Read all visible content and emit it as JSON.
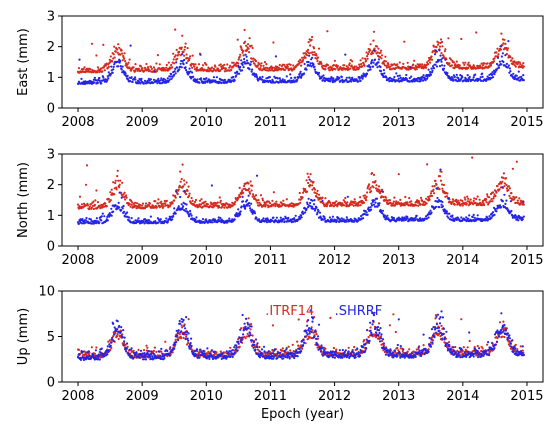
{
  "chart_data": [
    {
      "type": "scatter",
      "ylabel": "East (mm)",
      "xlabel": "",
      "xlim": [
        2007.75,
        2015.25
      ],
      "ylim": [
        0,
        3
      ],
      "xticks": [
        2008,
        2009,
        2010,
        2011,
        2012,
        2013,
        2014,
        2015
      ],
      "yticks": [
        0,
        1,
        2,
        3
      ],
      "grid": false,
      "series": [
        {
          "name": "ITRF14",
          "color": "#d62a1e",
          "model": {
            "base": 1.15,
            "amp": 0.55,
            "trend": 0.02,
            "noise": 0.18,
            "peak_phase": 0.62,
            "outlier_max": 2.6
          }
        },
        {
          "name": "SHRRF",
          "color": "#2424e8",
          "model": {
            "base": 0.78,
            "amp": 0.5,
            "trend": 0.015,
            "noise": 0.14,
            "peak_phase": 0.62,
            "outlier_max": 2.6
          }
        }
      ]
    },
    {
      "type": "scatter",
      "ylabel": "North (mm)",
      "xlabel": "",
      "xlim": [
        2007.75,
        2015.25
      ],
      "ylim": [
        0,
        3
      ],
      "xticks": [
        2008,
        2009,
        2010,
        2011,
        2012,
        2013,
        2014,
        2015
      ],
      "yticks": [
        0,
        1,
        2,
        3
      ],
      "grid": false,
      "series": [
        {
          "name": "ITRF14",
          "color": "#d62a1e",
          "model": {
            "base": 1.2,
            "amp": 0.55,
            "trend": 0.02,
            "noise": 0.18,
            "peak_phase": 0.62,
            "outlier_max": 2.9
          }
        },
        {
          "name": "SHRRF",
          "color": "#2424e8",
          "model": {
            "base": 0.72,
            "amp": 0.45,
            "trend": 0.015,
            "noise": 0.13,
            "peak_phase": 0.62,
            "outlier_max": 2.5
          }
        }
      ]
    },
    {
      "type": "scatter",
      "ylabel": "Up (mm)",
      "xlabel": "Epoch (year)",
      "xlim": [
        2007.75,
        2015.25
      ],
      "ylim": [
        0,
        10
      ],
      "xticks": [
        2008,
        2009,
        2010,
        2011,
        2012,
        2013,
        2014,
        2015
      ],
      "yticks": [
        0,
        5,
        10
      ],
      "grid": false,
      "legend": {
        "placement": "top-center",
        "entries": [
          "ITRF14",
          "SHRRF"
        ]
      },
      "series": [
        {
          "name": "ITRF14",
          "color": "#d62a1e",
          "model": {
            "base": 2.6,
            "amp": 2.0,
            "trend": 0.05,
            "noise": 0.7,
            "peak_phase": 0.62,
            "outlier_max": 8.2
          }
        },
        {
          "name": "SHRRF",
          "color": "#2424e8",
          "model": {
            "base": 2.4,
            "amp": 2.6,
            "trend": 0.05,
            "noise": 0.8,
            "peak_phase": 0.62,
            "outlier_max": 8.0
          }
        }
      ]
    }
  ]
}
